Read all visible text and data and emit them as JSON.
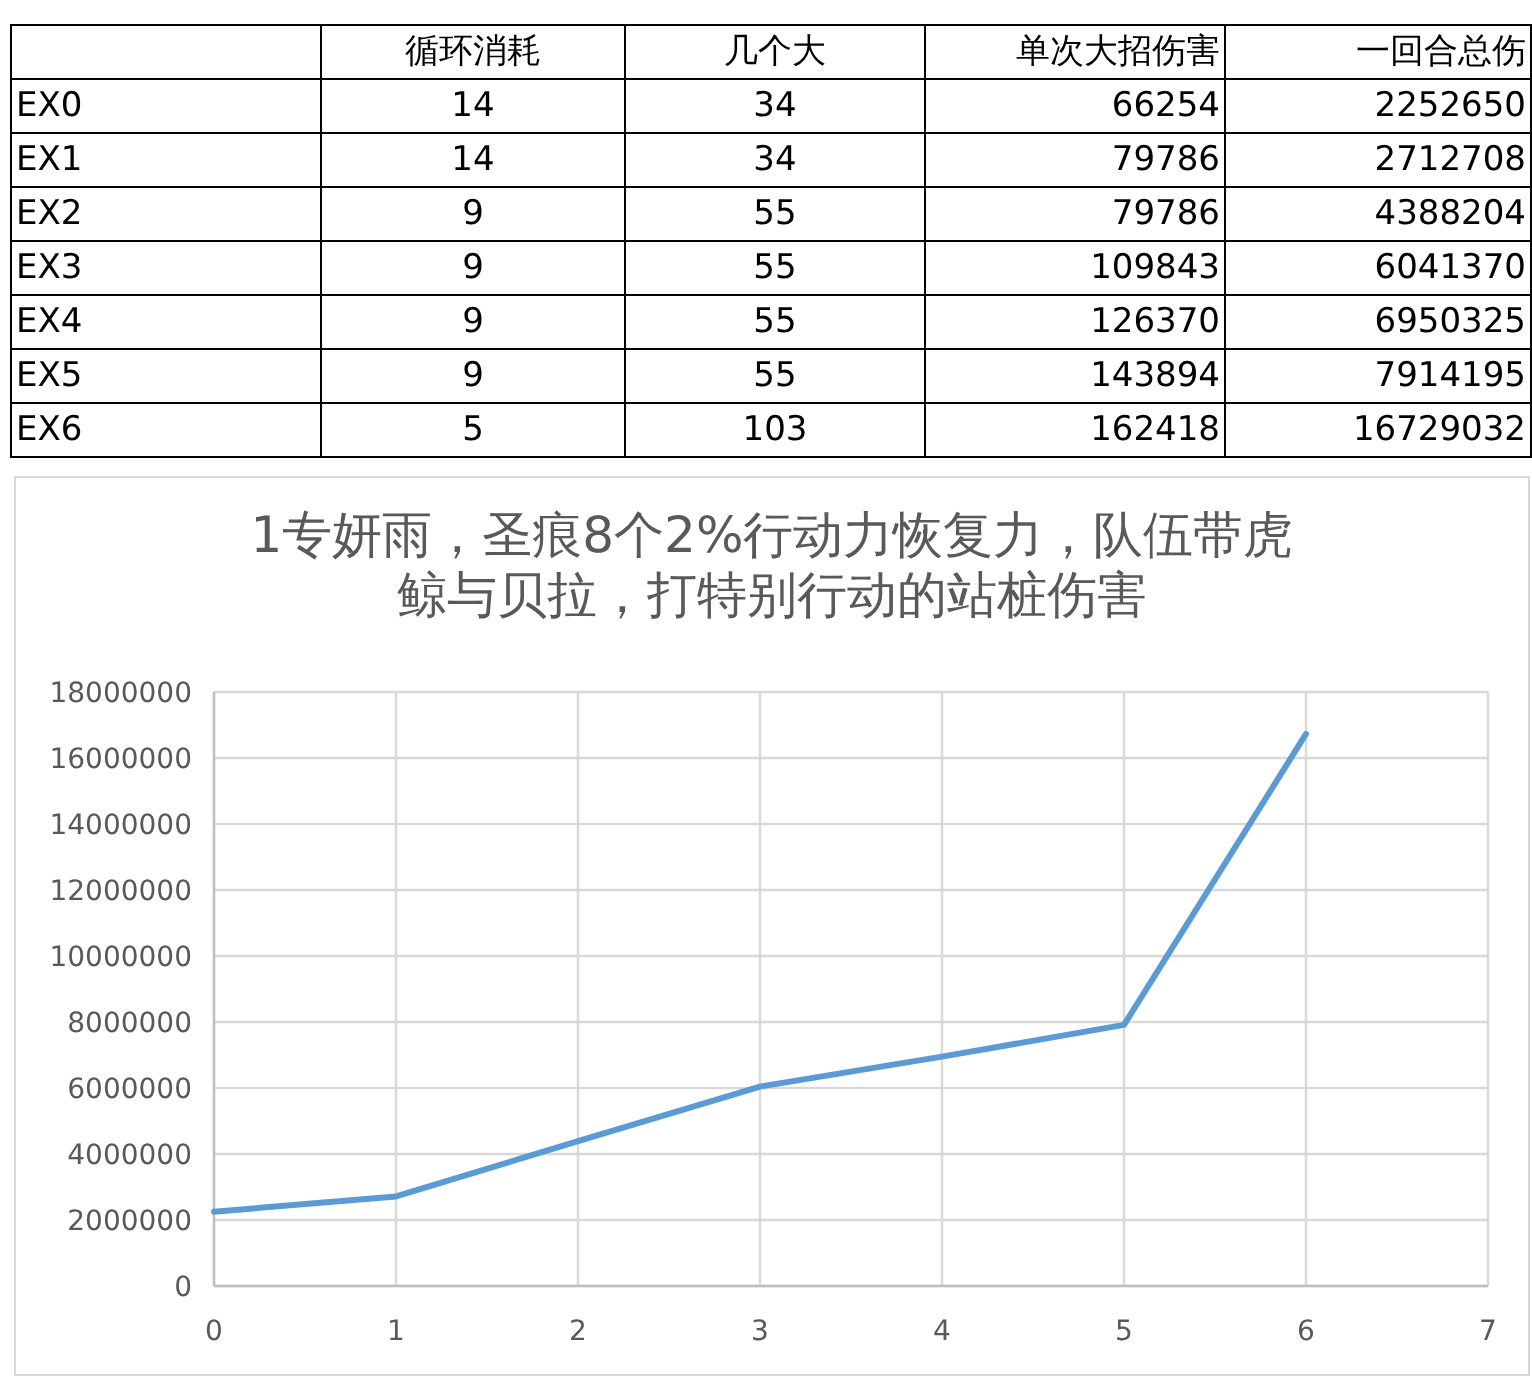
{
  "chart_data": [
    {
      "type": "other",
      "categories": [
        "EX0",
        "EX1",
        "EX2",
        "EX3",
        "EX4",
        "EX5",
        "EX6"
      ],
      "series": [
        {
          "name": "循环消耗",
          "values": [
            14,
            14,
            9,
            9,
            9,
            9,
            5
          ]
        },
        {
          "name": "几个大",
          "values": [
            34,
            34,
            55,
            55,
            55,
            55,
            103
          ]
        },
        {
          "name": "单次大招伤害",
          "values": [
            66254,
            79786,
            79786,
            109843,
            126370,
            143894,
            162418
          ]
        },
        {
          "name": "一回合总伤",
          "values": [
            2252650,
            2712708,
            4388204,
            6041370,
            6950325,
            7914195,
            16729032
          ]
        }
      ],
      "data_labels": true
    },
    {
      "type": "line",
      "title": "1专妍雨，圣痕8个2%行动力恢复力，队伍带虎鲸与贝拉，打特别行动的站桩伤害",
      "x": [
        0,
        1,
        2,
        3,
        4,
        5,
        6
      ],
      "values": [
        2252650,
        2712708,
        4388204,
        6041370,
        6950325,
        7914195,
        16729032
      ],
      "color": "#5b9bd5",
      "xlim": [
        0,
        7
      ],
      "xticks": [
        0,
        1,
        2,
        3,
        4,
        5,
        6,
        7
      ],
      "ylim": [
        0,
        18000000
      ],
      "yticks": [
        0,
        2000000,
        4000000,
        6000000,
        8000000,
        10000000,
        12000000,
        14000000,
        16000000,
        18000000
      ],
      "grid": true
    }
  ]
}
